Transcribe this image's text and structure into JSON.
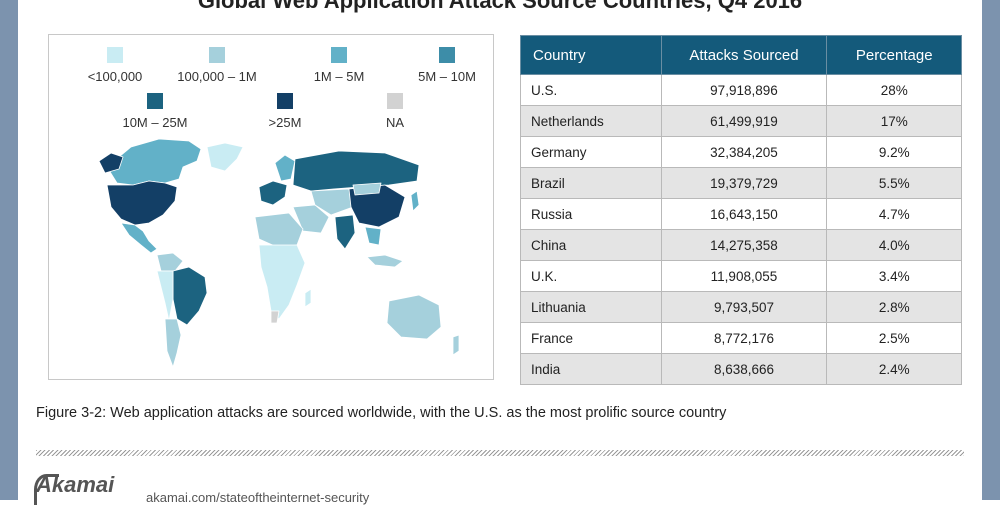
{
  "title": "Global Web Application Attack Source Countries, Q4 2016",
  "legend": [
    {
      "label": "<100,000",
      "color": "#c9ecf3"
    },
    {
      "label": "100,000 – 1M",
      "color": "#a5d0dc"
    },
    {
      "label": "1M – 5M",
      "color": "#62b1c8"
    },
    {
      "label": "5M – 10M",
      "color": "#3d8da8"
    },
    {
      "label": "10M – 25M",
      "color": "#1c6380"
    },
    {
      "label": ">25M",
      "color": "#133f66"
    },
    {
      "label": "NA",
      "color": "#d2d2d2"
    }
  ],
  "table": {
    "headers": [
      "Country",
      "Attacks Sourced",
      "Percentage"
    ],
    "rows": [
      {
        "country": "U.S.",
        "attacks": "97,918,896",
        "pct": "28%"
      },
      {
        "country": "Netherlands",
        "attacks": "61,499,919",
        "pct": "17%"
      },
      {
        "country": "Germany",
        "attacks": "32,384,205",
        "pct": "9.2%"
      },
      {
        "country": "Brazil",
        "attacks": "19,379,729",
        "pct": "5.5%"
      },
      {
        "country": "Russia",
        "attacks": "16,643,150",
        "pct": "4.7%"
      },
      {
        "country": "China",
        "attacks": "14,275,358",
        "pct": "4.0%"
      },
      {
        "country": "U.K.",
        "attacks": "11,908,055",
        "pct": "3.4%"
      },
      {
        "country": "Lithuania",
        "attacks": "9,793,507",
        "pct": "2.8%"
      },
      {
        "country": "France",
        "attacks": "8,772,176",
        "pct": "2.5%"
      },
      {
        "country": "India",
        "attacks": "8,638,666",
        "pct": "2.4%"
      }
    ]
  },
  "caption": "Figure 3-2: Web application attacks are sourced worldwide, with the U.S. as the most prolific source country",
  "footer": {
    "logo": "Akamai",
    "url": "akamai.com/stateoftheinternet-security"
  }
}
